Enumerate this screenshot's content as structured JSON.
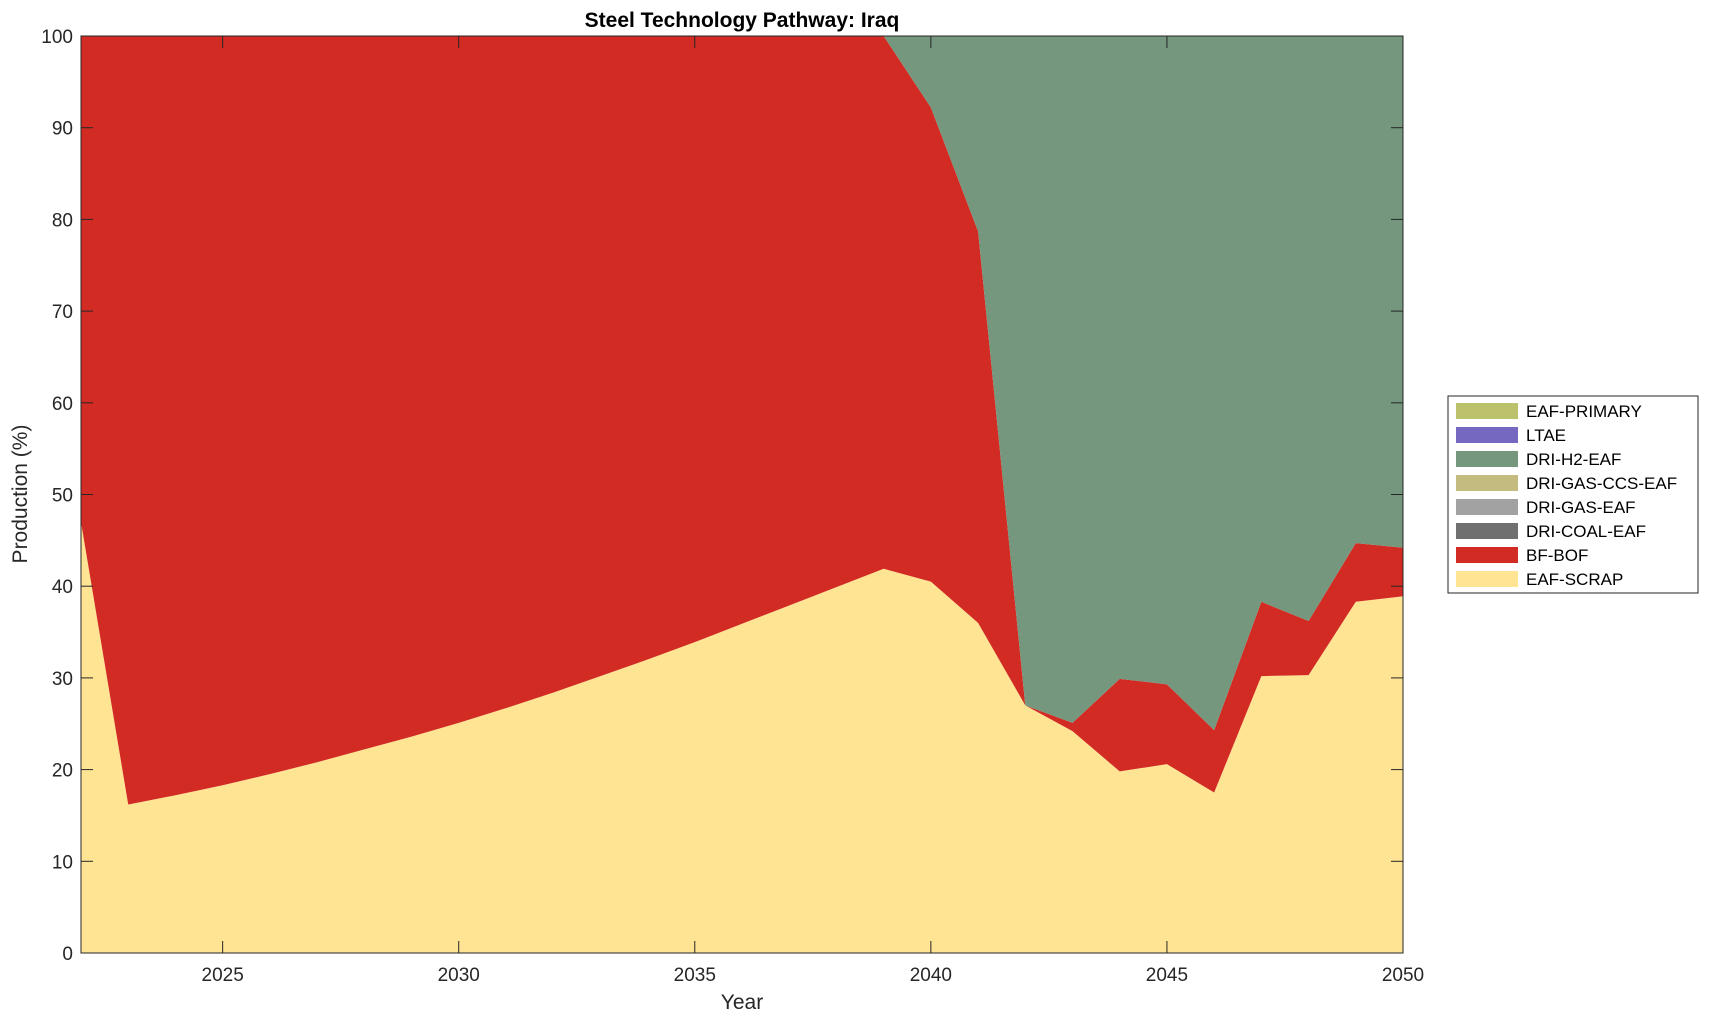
{
  "chart_data": {
    "type": "area",
    "stacked": true,
    "title": "Steel Technology Pathway: Iraq",
    "xlabel": "Year",
    "ylabel": "Production (%)",
    "xlim": [
      2022,
      2050
    ],
    "ylim": [
      0,
      100
    ],
    "xticks": [
      2025,
      2030,
      2035,
      2040,
      2045,
      2050
    ],
    "yticks": [
      0,
      10,
      20,
      30,
      40,
      50,
      60,
      70,
      80,
      90,
      100
    ],
    "grid": false,
    "legend_position": "outside-right",
    "x": [
      2022,
      2023,
      2024,
      2025,
      2026,
      2027,
      2028,
      2029,
      2030,
      2031,
      2032,
      2033,
      2034,
      2035,
      2036,
      2037,
      2038,
      2039,
      2040,
      2041,
      2042,
      2043,
      2044,
      2045,
      2046,
      2047,
      2048,
      2049,
      2050
    ],
    "series": [
      {
        "name": "EAF-SCRAP",
        "color": "#FFE494",
        "values": [
          47,
          16.2,
          17.2,
          18.3,
          19.5,
          20.8,
          22.2,
          23.6,
          25.1,
          26.7,
          28.4,
          30.2,
          32.0,
          33.9,
          35.9,
          37.9,
          39.9,
          41.9,
          40.5,
          36.0,
          27.0,
          24.2,
          19.8,
          20.6,
          17.5,
          30.2,
          30.3,
          38.3,
          38.9
        ]
      },
      {
        "name": "BF-BOF",
        "color": "#D22B24",
        "values": [
          53,
          83.8,
          82.8,
          81.7,
          80.5,
          79.2,
          77.8,
          76.4,
          74.9,
          73.3,
          71.6,
          69.8,
          68.0,
          66.1,
          64.1,
          62.1,
          60.1,
          58.1,
          51.7,
          42.7,
          0.0,
          0.9,
          10.1,
          8.7,
          6.8,
          8.1,
          5.9,
          6.4,
          5.3
        ]
      },
      {
        "name": "DRI-COAL-EAF",
        "color": "#707070",
        "values": [
          0,
          0,
          0,
          0,
          0,
          0,
          0,
          0,
          0,
          0,
          0,
          0,
          0,
          0,
          0,
          0,
          0,
          0,
          0,
          0,
          0,
          0,
          0,
          0,
          0,
          0,
          0,
          0,
          0
        ]
      },
      {
        "name": "DRI-GAS-EAF",
        "color": "#A2A2A2",
        "values": [
          0,
          0,
          0,
          0,
          0,
          0,
          0,
          0,
          0,
          0,
          0,
          0,
          0,
          0,
          0,
          0,
          0,
          0,
          0,
          0,
          0,
          0,
          0,
          0,
          0,
          0,
          0,
          0,
          0
        ]
      },
      {
        "name": "DRI-GAS-CCS-EAF",
        "color": "#C4BC7E",
        "values": [
          0,
          0,
          0,
          0,
          0,
          0,
          0,
          0,
          0,
          0,
          0,
          0,
          0,
          0,
          0,
          0,
          0,
          0,
          0,
          0,
          0,
          0,
          0,
          0,
          0,
          0,
          0,
          0,
          0
        ]
      },
      {
        "name": "DRI-H2-EAF",
        "color": "#74977D",
        "values": [
          0,
          0,
          0,
          0,
          0,
          0,
          0,
          0,
          0,
          0,
          0,
          0,
          0,
          0,
          0,
          0,
          0,
          0,
          7.8,
          21.3,
          73.0,
          74.9,
          70.1,
          70.7,
          75.7,
          61.7,
          63.8,
          55.3,
          55.8
        ]
      },
      {
        "name": "LTAE",
        "color": "#7468C0",
        "values": [
          0,
          0,
          0,
          0,
          0,
          0,
          0,
          0,
          0,
          0,
          0,
          0,
          0,
          0,
          0,
          0,
          0,
          0,
          0,
          0,
          0,
          0,
          0,
          0,
          0,
          0,
          0,
          0,
          0
        ]
      },
      {
        "name": "EAF-PRIMARY",
        "color": "#BCC26C",
        "values": [
          0,
          0,
          0,
          0,
          0,
          0,
          0,
          0,
          0,
          0,
          0,
          0,
          0,
          0,
          0,
          0,
          0,
          0,
          0,
          0,
          0,
          0,
          0,
          0,
          0,
          0,
          0,
          0,
          0
        ]
      }
    ],
    "legend_order": [
      "EAF-PRIMARY",
      "LTAE",
      "DRI-H2-EAF",
      "DRI-GAS-CCS-EAF",
      "DRI-GAS-EAF",
      "DRI-COAL-EAF",
      "BF-BOF",
      "EAF-SCRAP"
    ]
  }
}
